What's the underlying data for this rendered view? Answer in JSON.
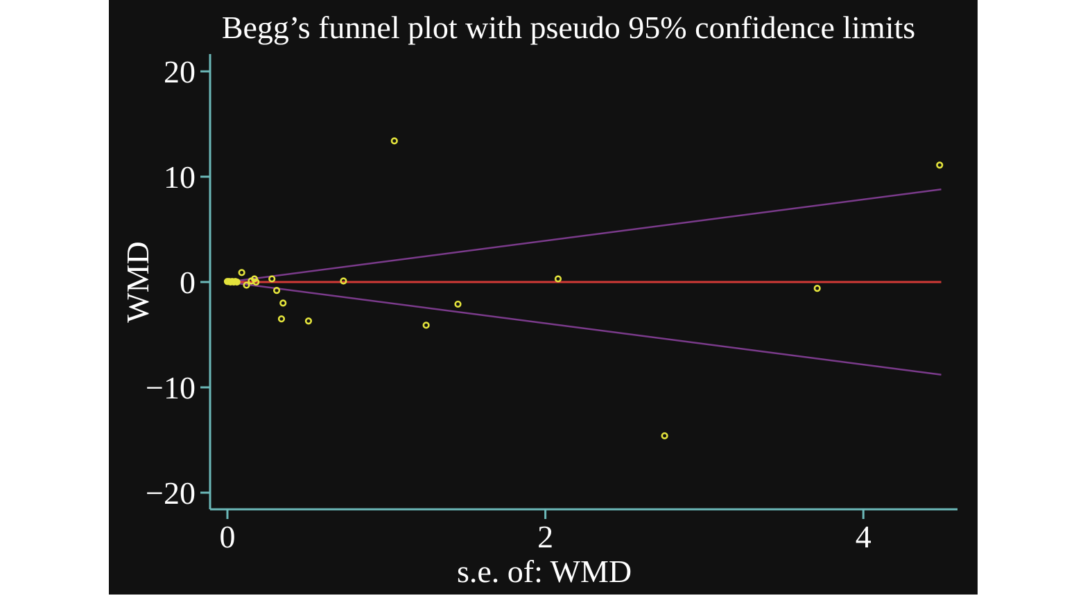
{
  "chart_data": {
    "type": "scatter",
    "title": "Begg’s funnel plot with pseudo 95% confidence limits",
    "xlabel": "s.e. of: WMD",
    "ylabel": "WMD",
    "xlim": [
      0,
      4.6
    ],
    "ylim": [
      -21,
      21
    ],
    "xticks": [
      {
        "v": 0,
        "label": "0"
      },
      {
        "v": 2,
        "label": "2"
      },
      {
        "v": 4,
        "label": "4"
      }
    ],
    "yticks": [
      {
        "v": 20,
        "label": "20"
      },
      {
        "v": 10,
        "label": "10"
      },
      {
        "v": 0,
        "label": "0"
      },
      {
        "v": -10,
        "label": "−10"
      },
      {
        "v": -20,
        "label": "−20"
      }
    ],
    "pooled_estimate": 0.0,
    "ci_multiplier": 1.96,
    "ci_se_max": 4.49,
    "points": [
      {
        "se": 0.0,
        "wmd": 0.05
      },
      {
        "se": 0.01,
        "wmd": 0.05
      },
      {
        "se": 0.02,
        "wmd": 0.0
      },
      {
        "se": 0.03,
        "wmd": 0.05
      },
      {
        "se": 0.04,
        "wmd": 0.0
      },
      {
        "se": 0.05,
        "wmd": 0.05
      },
      {
        "se": 0.06,
        "wmd": 0.0
      },
      {
        "se": 0.09,
        "wmd": 0.9
      },
      {
        "se": 0.12,
        "wmd": -0.3
      },
      {
        "se": 0.15,
        "wmd": 0.1
      },
      {
        "se": 0.17,
        "wmd": 0.3
      },
      {
        "se": 0.18,
        "wmd": 0.0
      },
      {
        "se": 0.28,
        "wmd": 0.3
      },
      {
        "se": 0.31,
        "wmd": -0.8
      },
      {
        "se": 0.35,
        "wmd": -2.0
      },
      {
        "se": 0.34,
        "wmd": -3.5
      },
      {
        "se": 0.51,
        "wmd": -3.7
      },
      {
        "se": 0.73,
        "wmd": 0.1
      },
      {
        "se": 1.05,
        "wmd": 13.4
      },
      {
        "se": 1.25,
        "wmd": -4.1
      },
      {
        "se": 1.45,
        "wmd": -2.1
      },
      {
        "se": 2.08,
        "wmd": 0.3
      },
      {
        "se": 2.75,
        "wmd": -14.6
      },
      {
        "se": 3.71,
        "wmd": -0.6
      },
      {
        "se": 4.48,
        "wmd": 11.1
      }
    ],
    "colors": {
      "background": "#111111",
      "axis": "#6cb9b9",
      "points": "#e3e33c",
      "pooled": "#d23a36",
      "ci": "#7b3b8c",
      "text": "#ffffff"
    }
  }
}
